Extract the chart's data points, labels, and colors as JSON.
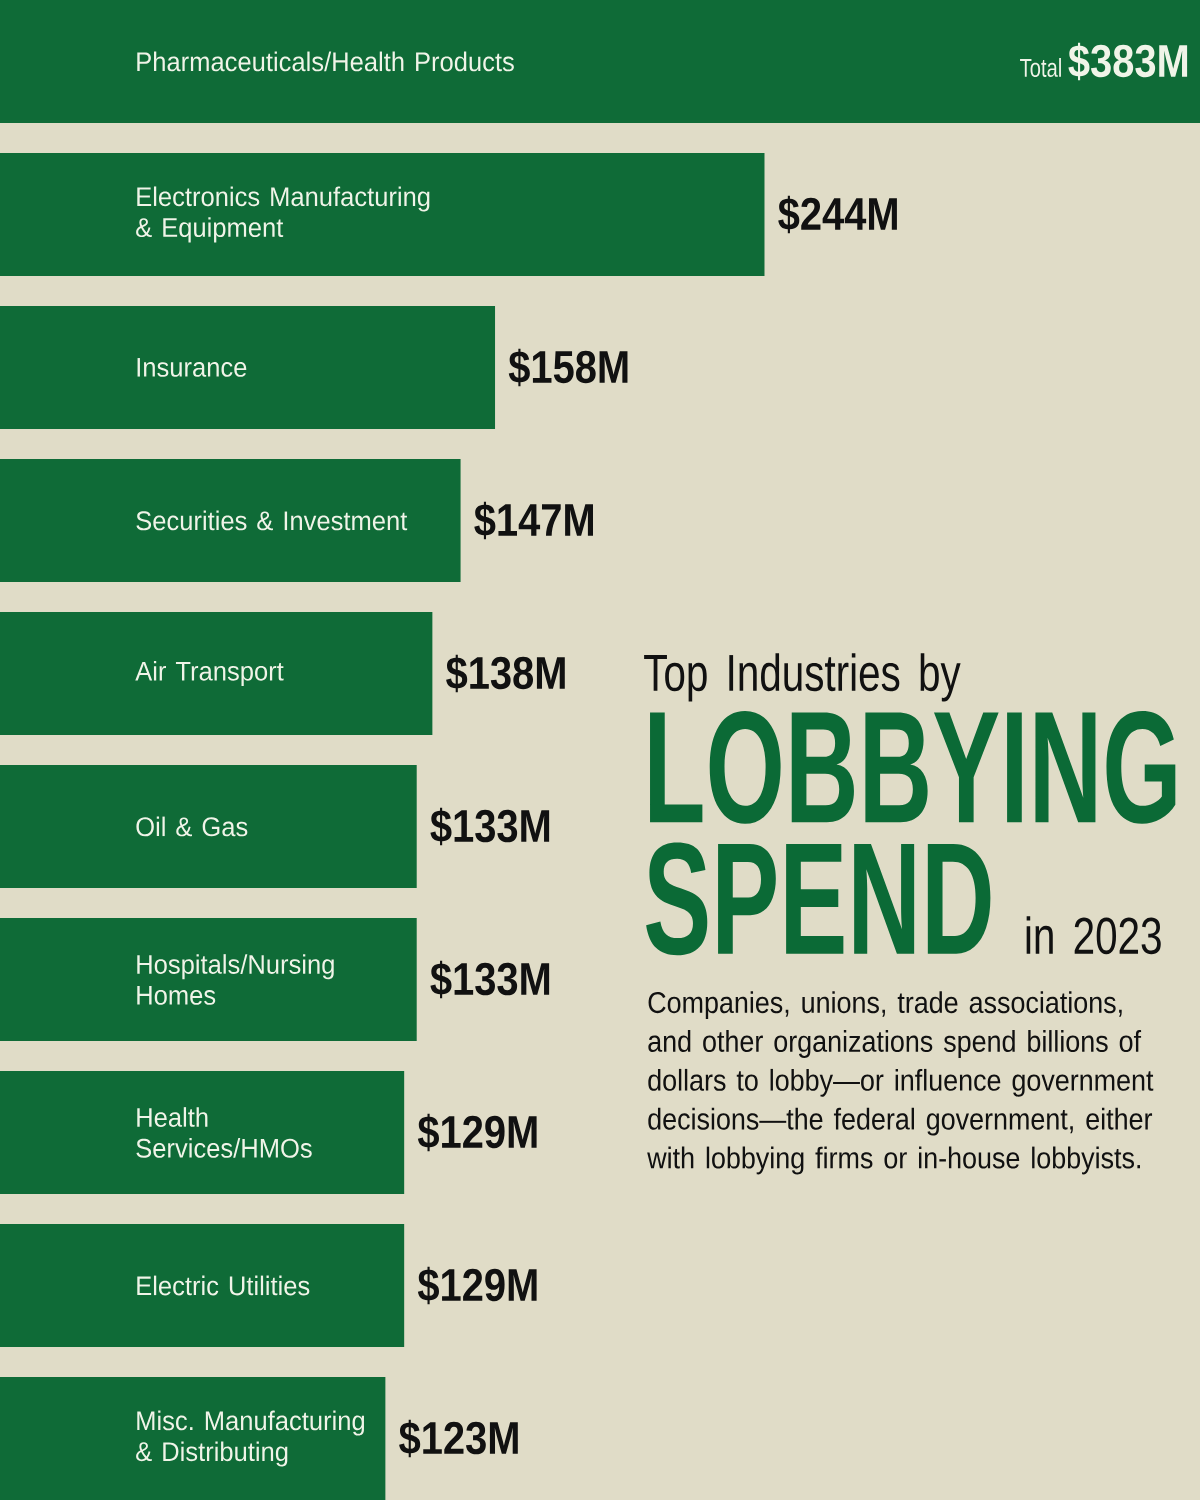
{
  "chart_data": {
    "type": "bar",
    "orientation": "horizontal",
    "title": "Top Industries by **LOBBYING SPEND** in 2023",
    "subtitle": "Companies, unions, trade associations, and other organizations spend billions of dollars to lobby—or influence government decisions—the federal government, either with lobbying firms or in-house lobbyists.",
    "categories": [
      "Pharmaceuticals/Health Products",
      "Electronics Manufacturing & Equipment",
      "Insurance",
      "Securities & Investment",
      "Air Transport",
      "Oil & Gas",
      "Hospitals/Nursing Homes",
      "Health Services/HMOs",
      "Electric Utilities",
      "Misc. Manufacturing & Distributing"
    ],
    "values": [
      383,
      244,
      158,
      147,
      138,
      133,
      133,
      129,
      129,
      123
    ],
    "color": "#0f6b37",
    "value_labels": [
      "Total **$383M**",
      "$244M",
      "$158M",
      "$147M",
      "$138M",
      "$133M",
      "$133M",
      "$129M",
      "$129M",
      "$123M"
    ]
  }
}
